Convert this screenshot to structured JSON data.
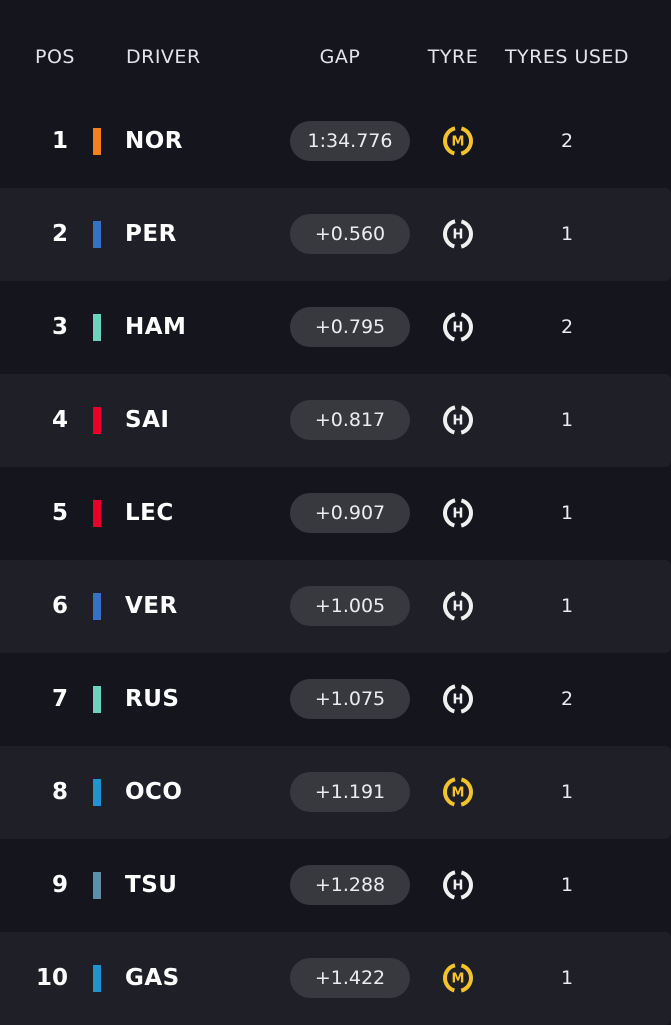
{
  "header": {
    "pos": "POS",
    "driver": "DRIVER",
    "gap": "GAP",
    "tyre": "TYRE",
    "tyres_used": "TYRES USED"
  },
  "rows": [
    {
      "pos": 1,
      "driver": "NOR",
      "team_color": "#f58020",
      "gap": "1:34.776",
      "tyre": "M",
      "tyre_color": "#f2c32c",
      "tyres_used": 2
    },
    {
      "pos": 2,
      "driver": "PER",
      "team_color": "#3671c6",
      "gap": "+0.560",
      "tyre": "H",
      "tyre_color": "#f0f0f0",
      "tyres_used": 1
    },
    {
      "pos": 3,
      "driver": "HAM",
      "team_color": "#6cd3bf",
      "gap": "+0.795",
      "tyre": "H",
      "tyre_color": "#f0f0f0",
      "tyres_used": 2
    },
    {
      "pos": 4,
      "driver": "SAI",
      "team_color": "#e8002d",
      "gap": "+0.817",
      "tyre": "H",
      "tyre_color": "#f0f0f0",
      "tyres_used": 1
    },
    {
      "pos": 5,
      "driver": "LEC",
      "team_color": "#e8002d",
      "gap": "+0.907",
      "tyre": "H",
      "tyre_color": "#f0f0f0",
      "tyres_used": 1
    },
    {
      "pos": 6,
      "driver": "VER",
      "team_color": "#3671c6",
      "gap": "+1.005",
      "tyre": "H",
      "tyre_color": "#f0f0f0",
      "tyres_used": 1
    },
    {
      "pos": 7,
      "driver": "RUS",
      "team_color": "#6cd3bf",
      "gap": "+1.075",
      "tyre": "H",
      "tyre_color": "#f0f0f0",
      "tyres_used": 2
    },
    {
      "pos": 8,
      "driver": "OCO",
      "team_color": "#2293d1",
      "gap": "+1.191",
      "tyre": "M",
      "tyre_color": "#f2c32c",
      "tyres_used": 1
    },
    {
      "pos": 9,
      "driver": "TSU",
      "team_color": "#5e8faa",
      "gap": "+1.288",
      "tyre": "H",
      "tyre_color": "#f0f0f0",
      "tyres_used": 1
    },
    {
      "pos": 10,
      "driver": "GAS",
      "team_color": "#2293d1",
      "gap": "+1.422",
      "tyre": "M",
      "tyre_color": "#f2c32c",
      "tyres_used": 1
    }
  ]
}
